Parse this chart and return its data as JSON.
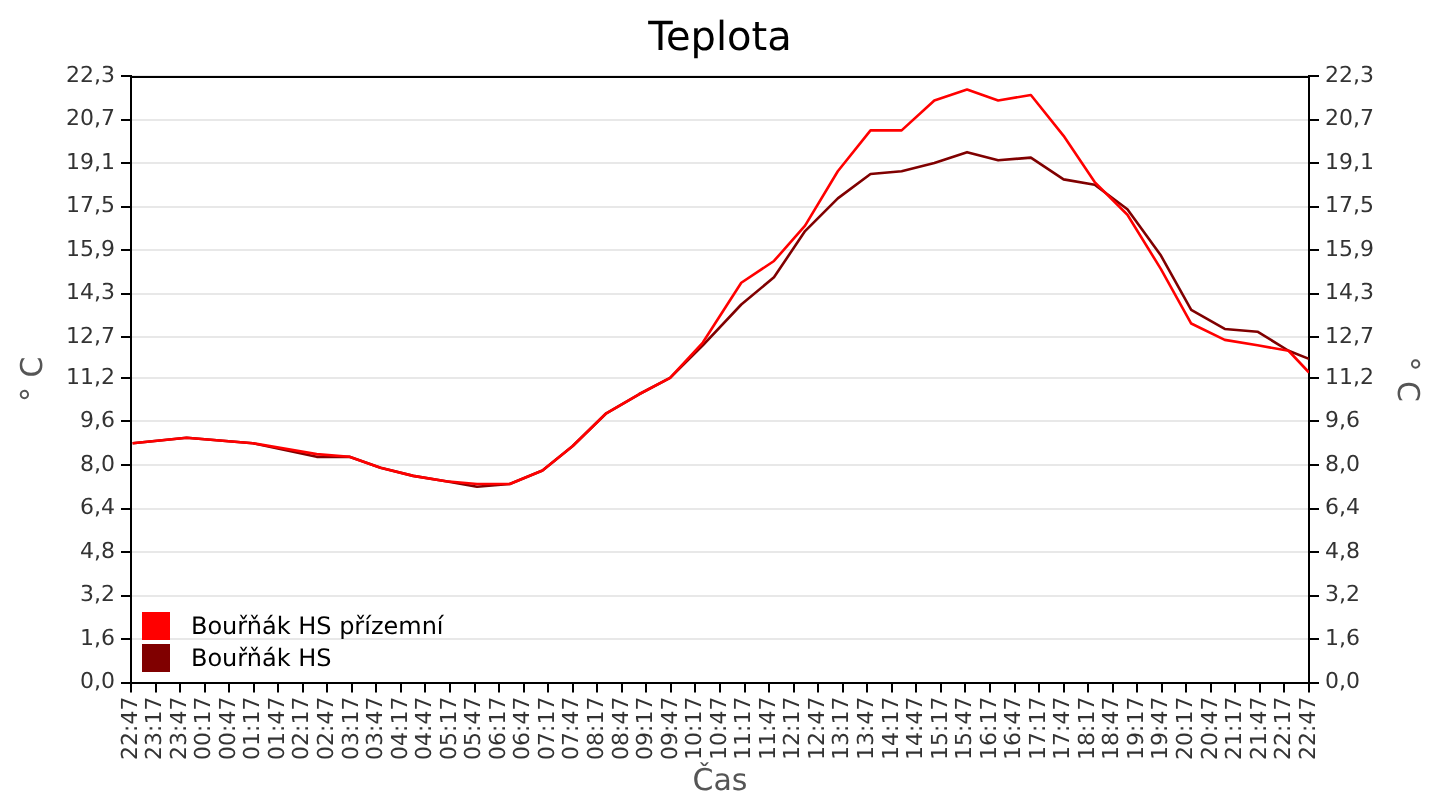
{
  "chart_data": {
    "type": "line",
    "title": "Teplota",
    "xlabel": "Čas",
    "ylabel": "° C",
    "y2label": "° C",
    "x": [
      "--01-01T22:49",
      "--01-01T23:55",
      "--01-02T01:16",
      "--01-02T02:34",
      "--01-02T03:14",
      "--01-02T03:52",
      "--01-02T04:32",
      "--01-02T05:12",
      "--01-02T05:50",
      "--01-02T06:30",
      "--01-02T07:10",
      "--01-02T07:47",
      "--01-02T08:28",
      "--01-02T09:08",
      "--01-02T09:46",
      "--01-02T10:26",
      "--01-02T11:13",
      "--01-02T11:53",
      "--01-02T12:31",
      "--01-02T13:11",
      "--01-02T13:51",
      "--01-02T14:29",
      "--01-02T15:09",
      "--01-02T15:49",
      "--01-02T16:27",
      "--01-02T17:07",
      "--01-02T17:47",
      "--01-02T18:25",
      "--01-02T19:05",
      "--01-02T19:46",
      "--01-02T20:23",
      "--01-02T21:04",
      "--01-02T21:44",
      "--01-02T22:22",
      "--01-02T22:47"
    ],
    "series": [
      {
        "name": "Bouřňák HS přízemní",
        "color": "#ff0000",
        "values": [
          8.8,
          9.0,
          8.8,
          8.4,
          8.3,
          7.9,
          7.6,
          7.4,
          7.3,
          7.3,
          7.8,
          8.7,
          9.9,
          10.6,
          11.2,
          12.5,
          14.7,
          15.5,
          16.8,
          18.8,
          20.3,
          20.3,
          21.4,
          21.8,
          21.4,
          21.6,
          20.1,
          18.4,
          17.2,
          15.2,
          13.2,
          12.6,
          12.4,
          12.2,
          11.4
        ]
      },
      {
        "name": "Bouřňák HS",
        "color": "#800000",
        "values": [
          8.8,
          9.0,
          8.8,
          8.3,
          8.3,
          7.9,
          7.6,
          7.4,
          7.2,
          7.3,
          7.8,
          8.7,
          9.9,
          10.6,
          11.2,
          12.4,
          13.9,
          14.9,
          16.6,
          17.8,
          18.7,
          18.8,
          19.1,
          19.5,
          19.2,
          19.3,
          18.5,
          18.3,
          17.4,
          15.7,
          13.7,
          13.0,
          12.9,
          12.2,
          11.9
        ]
      }
    ],
    "xlim": [
      "--01-01T22:47",
      "--01-02T22:47"
    ],
    "xticks": [
      {
        "value": "--01-01T22:47",
        "label": "22:47"
      },
      {
        "value": "--01-01T23:17",
        "label": "23:17"
      },
      {
        "value": "--01-01T23:47",
        "label": "23:47"
      },
      {
        "value": "--01-02T00:17",
        "label": "00:17"
      },
      {
        "value": "--01-02T00:47",
        "label": "00:47"
      },
      {
        "value": "--01-02T01:17",
        "label": "01:17"
      },
      {
        "value": "--01-02T01:47",
        "label": "01:47"
      },
      {
        "value": "--01-02T02:17",
        "label": "02:17"
      },
      {
        "value": "--01-02T02:47",
        "label": "02:47"
      },
      {
        "value": "--01-02T03:17",
        "label": "03:17"
      },
      {
        "value": "--01-02T03:47",
        "label": "03:47"
      },
      {
        "value": "--01-02T04:17",
        "label": "04:17"
      },
      {
        "value": "--01-02T04:47",
        "label": "04:47"
      },
      {
        "value": "--01-02T05:17",
        "label": "05:17"
      },
      {
        "value": "--01-02T05:47",
        "label": "05:47"
      },
      {
        "value": "--01-02T06:17",
        "label": "06:17"
      },
      {
        "value": "--01-02T06:47",
        "label": "06:47"
      },
      {
        "value": "--01-02T07:17",
        "label": "07:17"
      },
      {
        "value": "--01-02T07:47",
        "label": "07:47"
      },
      {
        "value": "--01-02T08:17",
        "label": "08:17"
      },
      {
        "value": "--01-02T08:47",
        "label": "08:47"
      },
      {
        "value": "--01-02T09:17",
        "label": "09:17"
      },
      {
        "value": "--01-02T09:47",
        "label": "09:47"
      },
      {
        "value": "--01-02T10:17",
        "label": "10:17"
      },
      {
        "value": "--01-02T10:47",
        "label": "10:47"
      },
      {
        "value": "--01-02T11:17",
        "label": "11:17"
      },
      {
        "value": "--01-02T11:47",
        "label": "11:47"
      },
      {
        "value": "--01-02T12:17",
        "label": "12:17"
      },
      {
        "value": "--01-02T12:47",
        "label": "12:47"
      },
      {
        "value": "--01-02T13:17",
        "label": "13:17"
      },
      {
        "value": "--01-02T13:47",
        "label": "13:47"
      },
      {
        "value": "--01-02T14:17",
        "label": "14:17"
      },
      {
        "value": "--01-02T14:47",
        "label": "14:47"
      },
      {
        "value": "--01-02T15:17",
        "label": "15:17"
      },
      {
        "value": "--01-02T15:47",
        "label": "15:47"
      },
      {
        "value": "--01-02T16:17",
        "label": "16:17"
      },
      {
        "value": "--01-02T16:47",
        "label": "16:47"
      },
      {
        "value": "--01-02T17:17",
        "label": "17:17"
      },
      {
        "value": "--01-02T17:47",
        "label": "17:47"
      },
      {
        "value": "--01-02T18:17",
        "label": "18:17"
      },
      {
        "value": "--01-02T18:47",
        "label": "18:47"
      },
      {
        "value": "--01-02T19:17",
        "label": "19:17"
      },
      {
        "value": "--01-02T19:47",
        "label": "19:47"
      },
      {
        "value": "--01-02T20:17",
        "label": "20:17"
      },
      {
        "value": "--01-02T20:47",
        "label": "20:47"
      },
      {
        "value": "--01-02T21:17",
        "label": "21:17"
      },
      {
        "value": "--01-02T21:47",
        "label": "21:47"
      },
      {
        "value": "--01-02T22:17",
        "label": "22:17"
      },
      {
        "value": "--01-02T22:47",
        "label": "22:47"
      }
    ],
    "ylim": [
      0,
      22.3
    ],
    "yticks": [
      {
        "value": 0,
        "label": "0,0"
      },
      {
        "value": 1.6,
        "label": "1,6"
      },
      {
        "value": 3.2,
        "label": "3,2"
      },
      {
        "value": 4.8,
        "label": "4,8"
      },
      {
        "value": 6.4,
        "label": "6,4"
      },
      {
        "value": 8.0,
        "label": "8,0"
      },
      {
        "value": 9.6,
        "label": "9,6"
      },
      {
        "value": 11.2,
        "label": "11,2"
      },
      {
        "value": 12.7,
        "label": "12,7"
      },
      {
        "value": 14.3,
        "label": "14,3"
      },
      {
        "value": 15.9,
        "label": "15,9"
      },
      {
        "value": 17.5,
        "label": "17,5"
      },
      {
        "value": 19.1,
        "label": "19,1"
      },
      {
        "value": 20.7,
        "label": "20,7"
      },
      {
        "value": 22.3,
        "label": "22,3"
      }
    ],
    "y2lim": [
      0,
      22.3
    ],
    "y2ticks": [
      {
        "value": 0,
        "label": "0,0"
      },
      {
        "value": 1.6,
        "label": "1,6"
      },
      {
        "value": 3.2,
        "label": "3,2"
      },
      {
        "value": 4.8,
        "label": "4,8"
      },
      {
        "value": 6.4,
        "label": "6,4"
      },
      {
        "value": 8.0,
        "label": "8,0"
      },
      {
        "value": 9.6,
        "label": "9,6"
      },
      {
        "value": 11.2,
        "label": "11,2"
      },
      {
        "value": 12.7,
        "label": "12,7"
      },
      {
        "value": 14.3,
        "label": "14,3"
      },
      {
        "value": 15.9,
        "label": "15,9"
      },
      {
        "value": 17.5,
        "label": "17,5"
      },
      {
        "value": 19.1,
        "label": "19,1"
      },
      {
        "value": 20.7,
        "label": "20,7"
      },
      {
        "value": 22.3,
        "label": "22,3"
      }
    ],
    "grid": "y",
    "legend": "bottom left",
    "marker": "none",
    "line_style": "solid"
  }
}
